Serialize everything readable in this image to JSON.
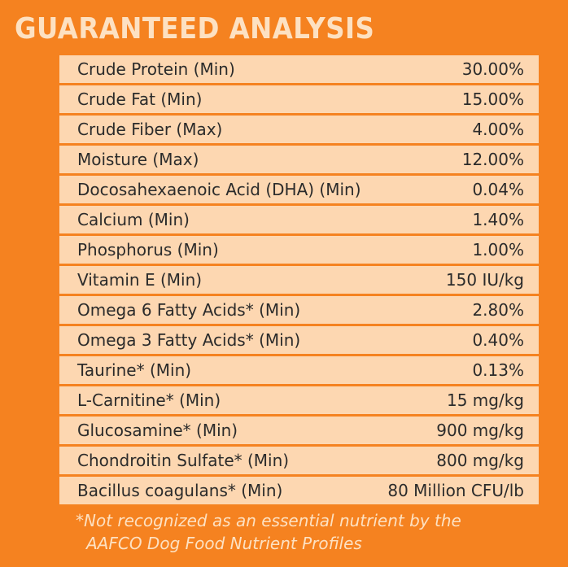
{
  "title": "GUARANTEED ANALYSIS",
  "rows": [
    {
      "name": "Crude Protein (Min)",
      "value": "30.00%"
    },
    {
      "name": "Crude Fat (Min)",
      "value": "15.00%"
    },
    {
      "name": "Crude Fiber (Max)",
      "value": "4.00%"
    },
    {
      "name": "Moisture (Max)",
      "value": "12.00%"
    },
    {
      "name": "Docosahexaenoic Acid (DHA) (Min)",
      "value": "0.04%"
    },
    {
      "name": "Calcium (Min)",
      "value": "1.40%"
    },
    {
      "name": "Phosphorus (Min)",
      "value": "1.00%"
    },
    {
      "name": "Vitamin E (Min)",
      "value": "150 IU/kg"
    },
    {
      "name": "Omega 6 Fatty Acids* (Min)",
      "value": "2.80%"
    },
    {
      "name": "Omega 3 Fatty Acids* (Min)",
      "value": "0.40%"
    },
    {
      "name": "Taurine* (Min)",
      "value": "0.13%"
    },
    {
      "name": "L-Carnitine* (Min)",
      "value": "15 mg/kg"
    },
    {
      "name": "Glucosamine* (Min)",
      "value": "900 mg/kg"
    },
    {
      "name": "Chondroitin Sulfate* (Min)",
      "value": "800 mg/kg"
    },
    {
      "name": "Bacillus coagulans* (Min)",
      "value": "80 Million CFU/lb"
    }
  ],
  "footnote": {
    "line1": "*Not recognized as an essential nutrient by the",
    "line2": "AAFCO Dog Food Nutrient Profiles"
  },
  "colors": {
    "background": "#f58220",
    "row_fill": "#fdd7b1",
    "title_text": "#fde1c2",
    "row_text": "#2b2b2b"
  }
}
